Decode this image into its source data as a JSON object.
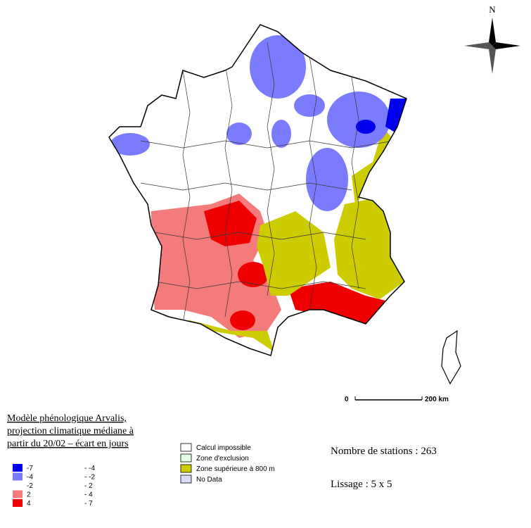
{
  "compass": {
    "label": "N"
  },
  "scale_bar": {
    "start": "0",
    "end": "200 km"
  },
  "legend": {
    "title": [
      "Modèle phénologique Arvalis,",
      "projection climatique médiane à",
      "partir du 20/02 – écart en jours"
    ],
    "classes": [
      {
        "from": "-7",
        "to": "- -4",
        "color": "#0000ee"
      },
      {
        "from": "-4",
        "to": "- -2",
        "color": "#7b7bff"
      },
      {
        "from": "-2",
        "to": "- 2",
        "color": "#ffffff"
      },
      {
        "from": "2",
        "to": "- 4",
        "color": "#f47b7b"
      },
      {
        "from": "4",
        "to": "- 7",
        "color": "#ee0000"
      }
    ],
    "categories": [
      {
        "label": "Calcul impossible",
        "color": "#ffffff"
      },
      {
        "label": "Zone d'exclusion",
        "color": "#e2ffe2"
      },
      {
        "label": "Zone supérieure à 800 m",
        "color": "#cccc00"
      },
      {
        "label": "No Data",
        "color": "#dcdcff"
      }
    ]
  },
  "stats": {
    "stations": "Nombre de stations : 263",
    "smoothing": "Lissage : 5 x 5"
  }
}
